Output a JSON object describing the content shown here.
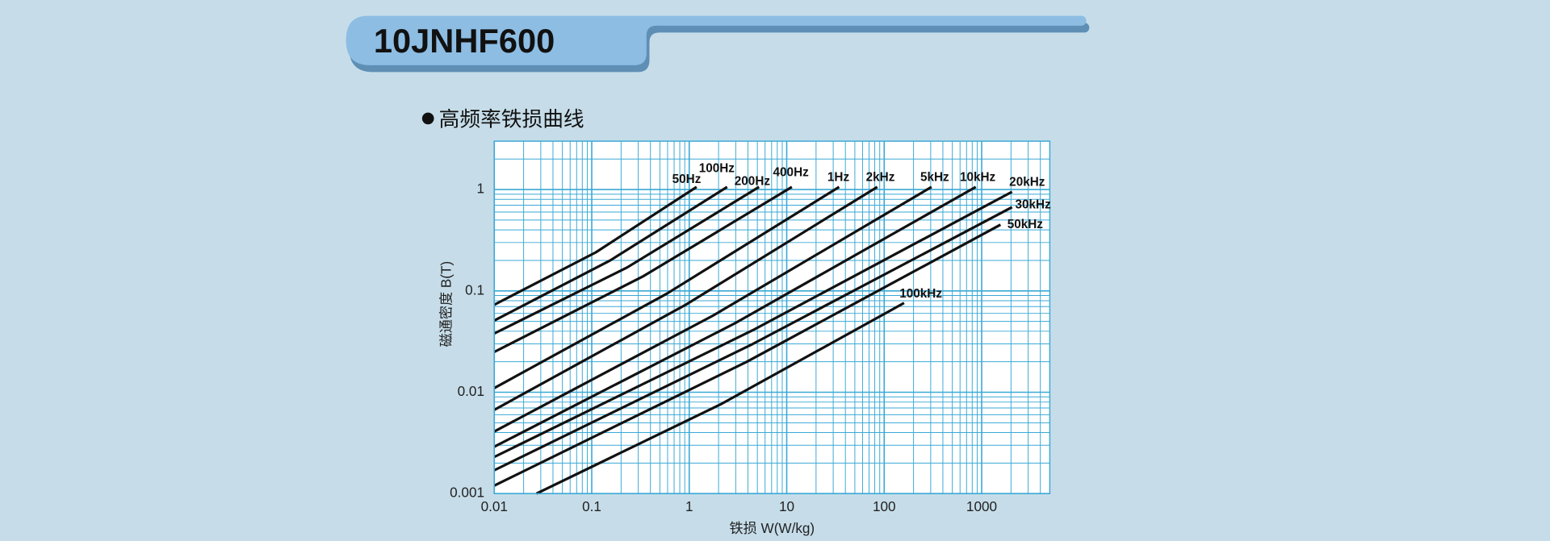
{
  "header": {
    "title": "10JNHF600"
  },
  "chart_data": {
    "type": "line",
    "title": "高频率铁损曲线",
    "x_label": "铁损 W(W/kg)",
    "y_label": "磁通密度 B(T)",
    "log_x": true,
    "log_y": true,
    "grid": true,
    "xlim": [
      0.01,
      5000
    ],
    "ylim": [
      0.001,
      3
    ],
    "xticks": [
      0.01,
      0.1,
      1,
      10,
      100,
      1000
    ],
    "yticks": [
      0.001,
      0.01,
      0.1,
      1
    ],
    "series": [
      {
        "name": "50Hz",
        "color": "#111111",
        "x": [
          0.01,
          0.11,
          1.19
        ],
        "values": [
          0.073,
          0.24,
          1.06
        ]
      },
      {
        "name": "100Hz",
        "color": "#111111",
        "x": [
          0.01,
          0.155,
          2.45
        ],
        "values": [
          0.051,
          0.2,
          1.06
        ]
      },
      {
        "name": "200Hz",
        "color": "#111111",
        "x": [
          0.01,
          0.23,
          5.2
        ],
        "values": [
          0.038,
          0.17,
          1.06
        ]
      },
      {
        "name": "400Hz",
        "color": "#111111",
        "x": [
          0.01,
          0.34,
          11.3
        ],
        "values": [
          0.025,
          0.14,
          1.06
        ]
      },
      {
        "name": "1Hz",
        "color": "#111111",
        "x": [
          0.01,
          0.59,
          34.5
        ],
        "values": [
          0.011,
          0.094,
          1.06
        ]
      },
      {
        "name": "2kHz",
        "color": "#111111",
        "x": [
          0.01,
          0.92,
          85
        ],
        "values": [
          0.0067,
          0.073,
          1.06
        ]
      },
      {
        "name": "5kHz",
        "color": "#111111",
        "x": [
          0.01,
          1.75,
          306
        ],
        "values": [
          0.0041,
          0.057,
          1.06
        ]
      },
      {
        "name": "10kHz",
        "color": "#111111",
        "x": [
          0.01,
          2.95,
          870
        ],
        "values": [
          0.0029,
          0.048,
          1.06
        ]
      },
      {
        "name": "20kHz",
        "color": "#111111",
        "x": [
          0.01,
          4.5,
          2050
        ],
        "values": [
          0.0023,
          0.041,
          0.95
        ]
      },
      {
        "name": "30kHz",
        "color": "#111111",
        "x": [
          0.01,
          4.5,
          2050
        ],
        "values": [
          0.0017,
          0.03,
          0.67
        ]
      },
      {
        "name": "50kHz",
        "color": "#111111",
        "x": [
          0.01,
          3.9,
          1560
        ],
        "values": [
          0.0012,
          0.02,
          0.45
        ]
      },
      {
        "name": "100kHz",
        "color": "#111111",
        "x": [
          0.0271,
          2.1,
          160
        ],
        "values": [
          0.001,
          0.0076,
          0.076
        ]
      }
    ]
  }
}
